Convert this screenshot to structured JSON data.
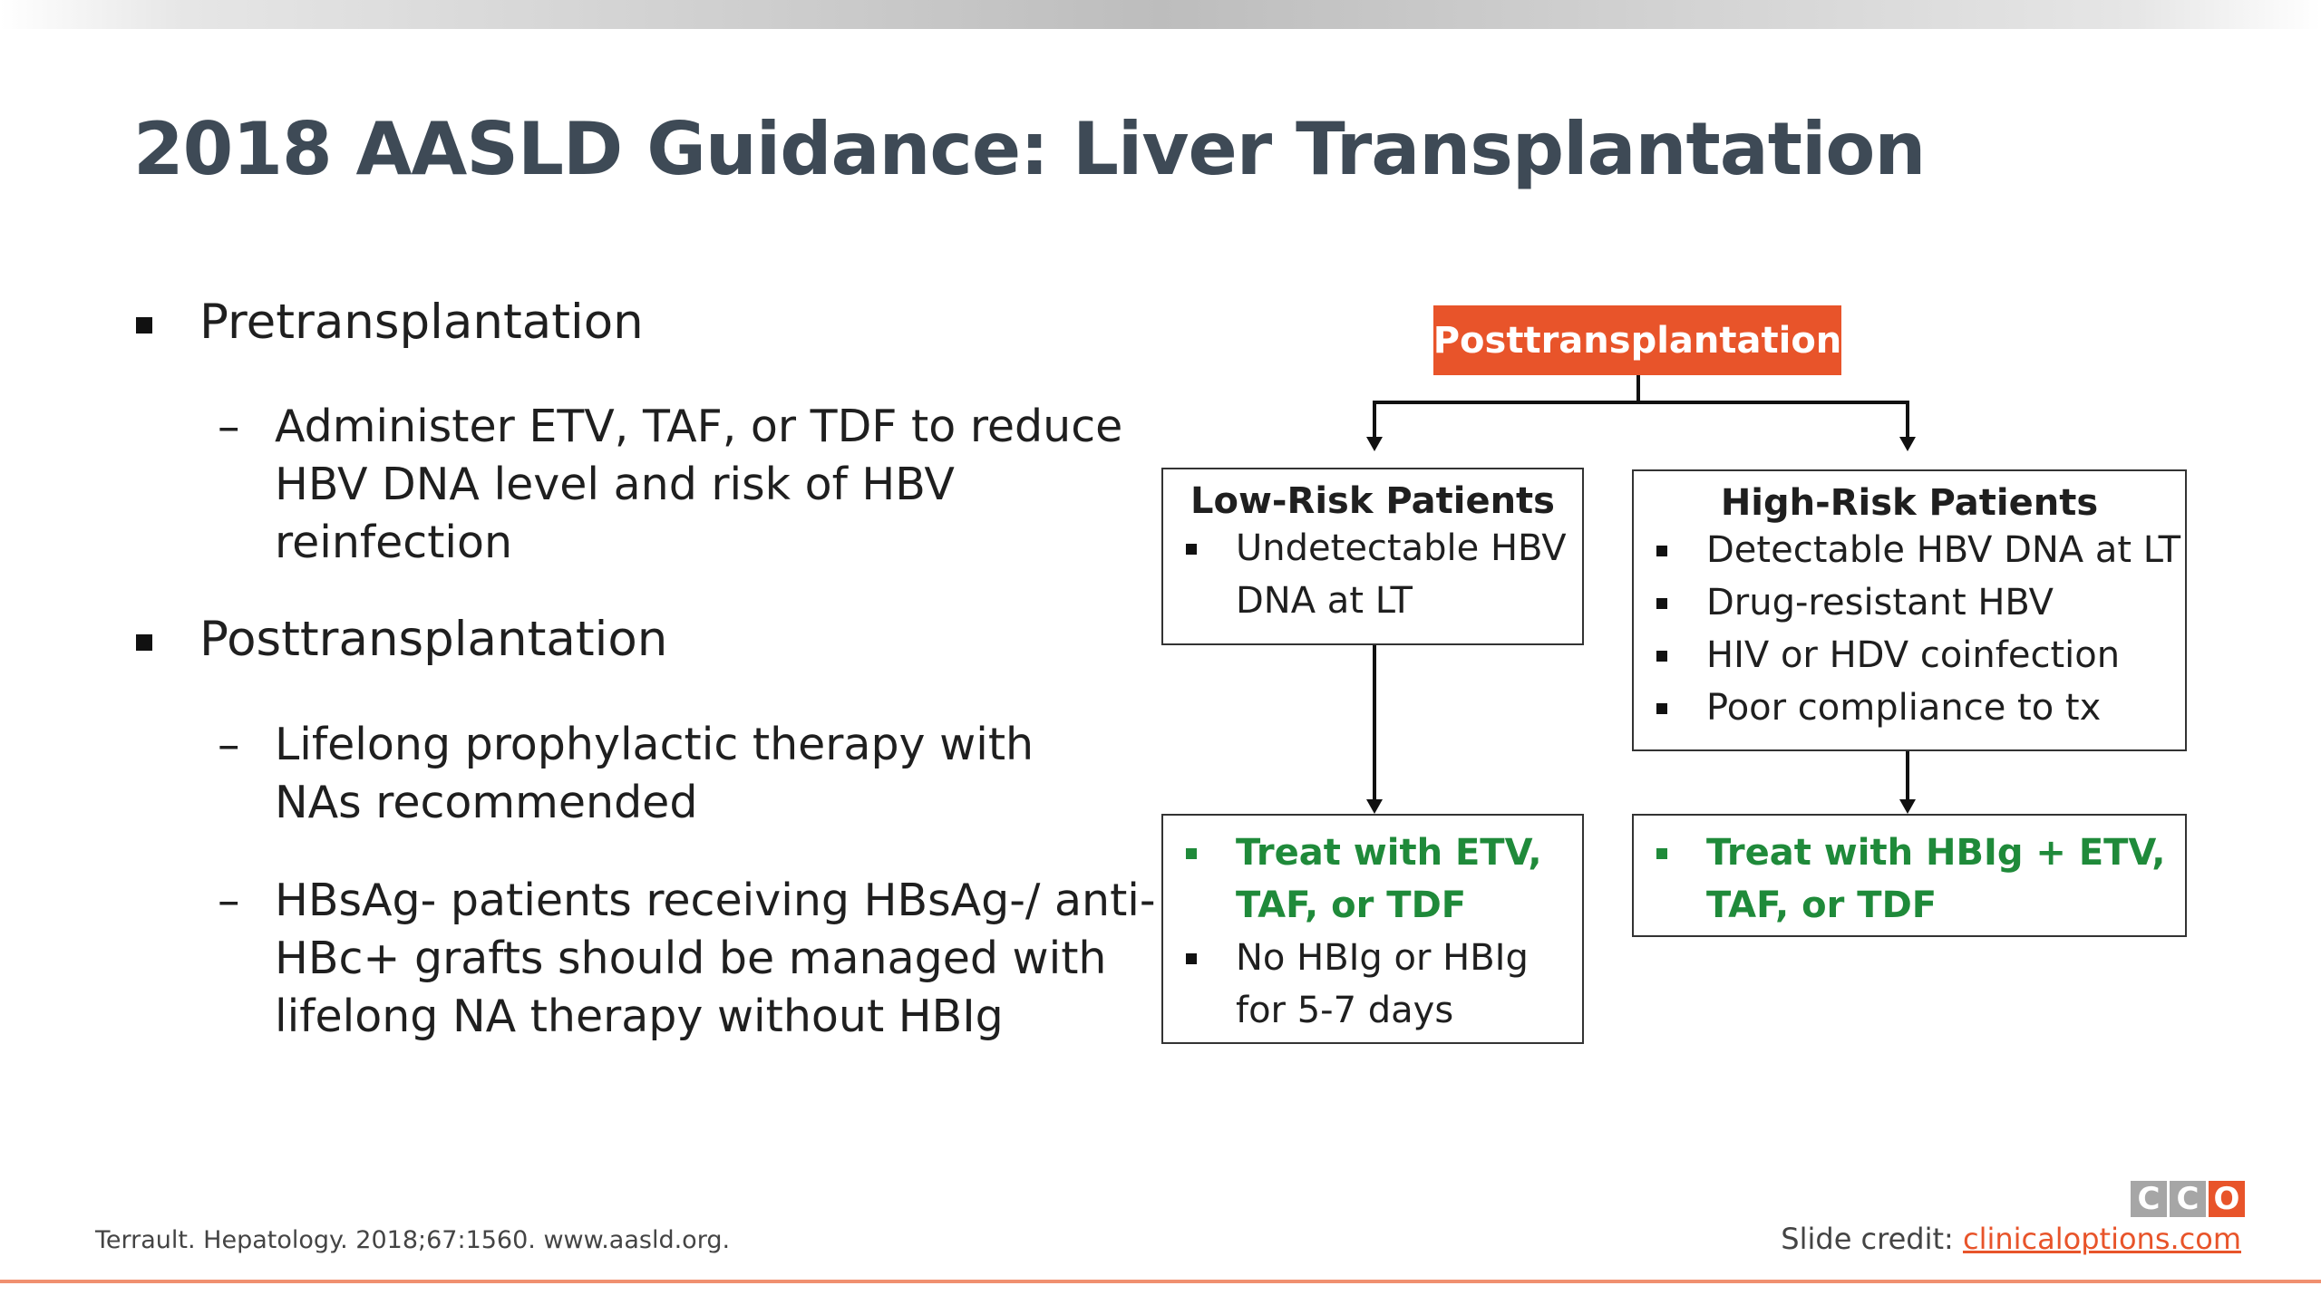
{
  "slide": {
    "title": "2018 AASLD Guidance: Liver Transplantation"
  },
  "bullets": [
    {
      "label": "Pretransplantation",
      "subs": [
        "Administer ETV, TAF, or TDF to reduce HBV DNA level and risk of HBV reinfection"
      ]
    },
    {
      "label": "Posttransplantation",
      "subs": [
        "Lifelong prophylactic therapy with NAs recommended",
        "HBsAg- patients receiving HBsAg-/ anti-HBc+ grafts should be managed with lifelong NA therapy without HBIg"
      ]
    }
  ],
  "dash_glyph": "–",
  "flowchart": {
    "root": "Posttransplantation",
    "low_risk": {
      "title": "Low-Risk Patients",
      "items": [
        "Undetectable HBV DNA at LT"
      ]
    },
    "high_risk": {
      "title": "High-Risk Patients",
      "items": [
        "Detectable HBV DNA at LT",
        "Drug-resistant HBV",
        "HIV or HDV coinfection",
        "Poor compliance to tx"
      ]
    },
    "low_treat": {
      "items": [
        "Treat with ETV, TAF, or TDF",
        "No HBIg or HBIg for 5-7 days"
      ]
    },
    "high_treat": {
      "items": [
        "Treat with HBIg + ETV, TAF, or TDF"
      ]
    }
  },
  "footer": {
    "reference": "Terrault. Hepatology. 2018;67:1560. www.aasld.org.",
    "credit_label": "Slide credit: ",
    "credit_link": "clinicaloptions.com",
    "logo_letters": [
      "C",
      "C",
      "O"
    ],
    "logo_colors": [
      "#a6a6a6",
      "#a6a6a6",
      "#e8542a"
    ]
  },
  "colors": {
    "accent": "#e8542a",
    "title": "#3e4a56",
    "treatment": "#1f8a3a"
  }
}
